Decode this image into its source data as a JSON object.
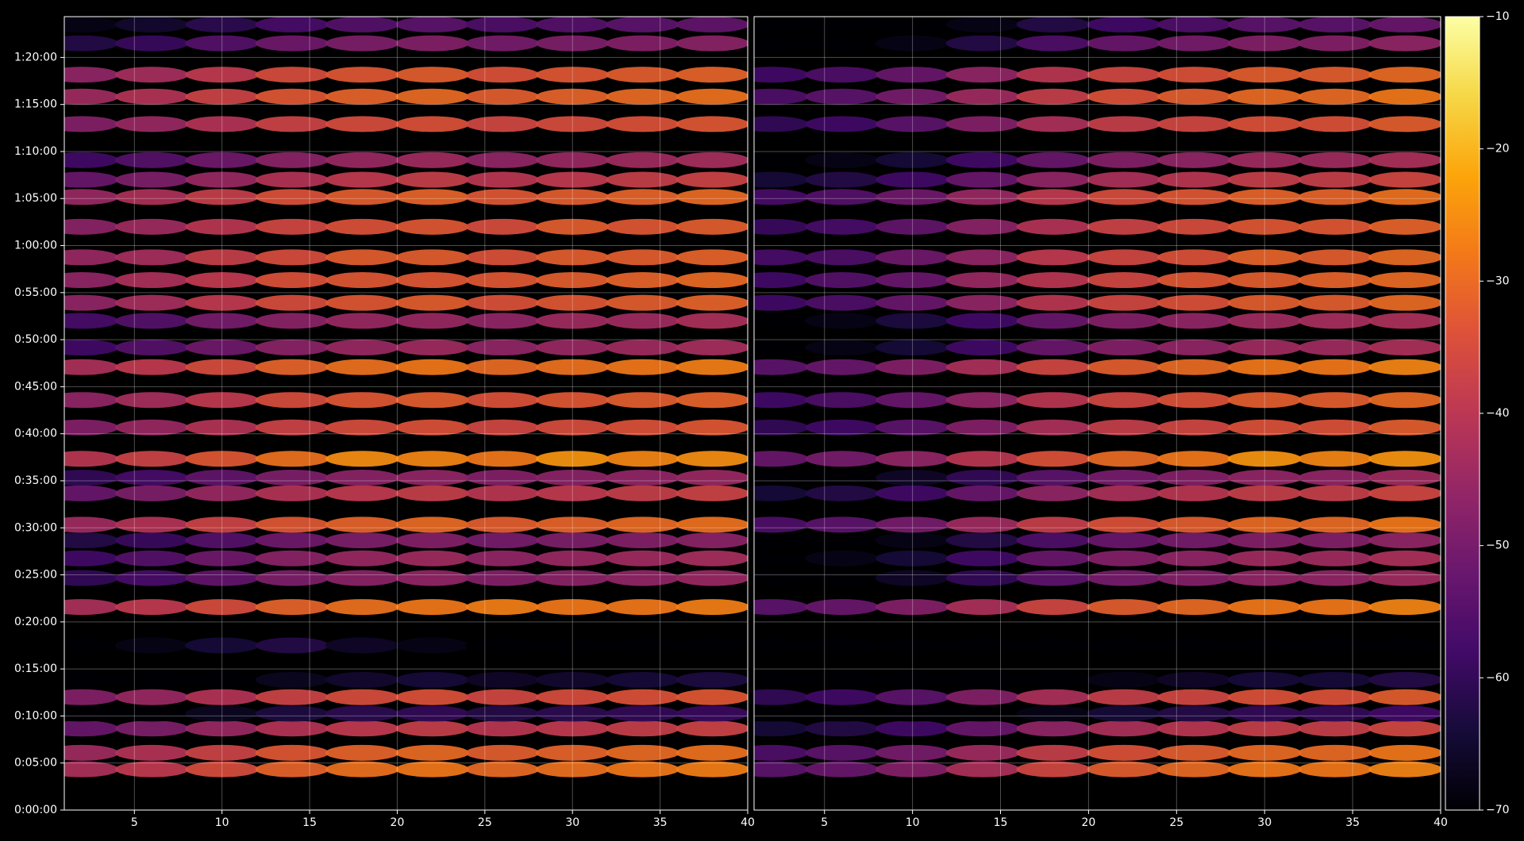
{
  "chart_data": {
    "type": "heatmap",
    "colormap": "inferno",
    "grid": true,
    "x": [
      2,
      6,
      10,
      14,
      18,
      22,
      26,
      30,
      34,
      38
    ],
    "y": [
      260,
      365,
      520,
      615,
      720,
      830,
      1050,
      1295,
      1480,
      1605,
      1720,
      1820,
      2020,
      2120,
      2240,
      2440,
      2615,
      2825,
      2950,
      3120,
      3235,
      3380,
      3525,
      3720,
      3910,
      4020,
      4145,
      4375,
      4550,
      4690,
      4890,
      5010
    ],
    "xlim": [
      1,
      40
    ],
    "xticks": [
      5,
      10,
      15,
      20,
      25,
      30,
      35,
      40
    ],
    "ylim": [
      0,
      5060
    ],
    "yticks": [
      {
        "value": 0,
        "label": "0:00:00"
      },
      {
        "value": 300,
        "label": "0:05:00"
      },
      {
        "value": 600,
        "label": "0:10:00"
      },
      {
        "value": 900,
        "label": "0:15:00"
      },
      {
        "value": 1200,
        "label": "0:20:00"
      },
      {
        "value": 1500,
        "label": "0:25:00"
      },
      {
        "value": 1800,
        "label": "0:30:00"
      },
      {
        "value": 2100,
        "label": "0:35:00"
      },
      {
        "value": 2400,
        "label": "0:40:00"
      },
      {
        "value": 2700,
        "label": "0:45:00"
      },
      {
        "value": 3000,
        "label": "0:50:00"
      },
      {
        "value": 3300,
        "label": "0:55:00"
      },
      {
        "value": 3600,
        "label": "1:00:00"
      },
      {
        "value": 3900,
        "label": "1:05:00"
      },
      {
        "value": 4200,
        "label": "1:10:00"
      },
      {
        "value": 4500,
        "label": "1:15:00"
      },
      {
        "value": 4800,
        "label": "1:20:00"
      }
    ],
    "clim": [
      -70,
      -10
    ],
    "cticks": [
      {
        "value": -70,
        "label": "−70"
      },
      {
        "value": -60,
        "label": "−60"
      },
      {
        "value": -50,
        "label": "−50"
      },
      {
        "value": -40,
        "label": "−40"
      },
      {
        "value": -30,
        "label": "−30"
      },
      {
        "value": -20,
        "label": "−20"
      },
      {
        "value": -10,
        "label": "−10"
      }
    ],
    "panels": [
      {
        "z": [
          [
            -42,
            -39,
            -35,
            -31,
            -29,
            -28,
            -30,
            -29,
            -28,
            -27
          ],
          [
            -44,
            -41,
            -37,
            -33,
            -31,
            -30,
            -32,
            -31,
            -30,
            -29
          ],
          [
            -52,
            -49,
            -45,
            -41,
            -39,
            -38,
            -40,
            -39,
            -38,
            -37
          ],
          [
            -70,
            -70,
            -67,
            -63,
            -61,
            -60,
            -62,
            -61,
            -60,
            -59
          ],
          [
            -48,
            -45,
            -41,
            -37,
            -35,
            -34,
            -36,
            -35,
            -34,
            -33
          ],
          [
            -70,
            -70,
            -70,
            -67,
            -65,
            -64,
            -66,
            -65,
            -64,
            -63
          ],
          [
            -70,
            -68,
            -64,
            -62,
            -66,
            -68,
            -70,
            -70,
            -70,
            -70
          ],
          [
            -42,
            -39,
            -35,
            -31,
            -29,
            -28,
            -27,
            -28,
            -28,
            -27
          ],
          [
            -60,
            -57,
            -53,
            -49,
            -47,
            -46,
            -48,
            -47,
            -46,
            -45
          ],
          [
            -58,
            -55,
            -51,
            -47,
            -45,
            -44,
            -46,
            -45,
            -44,
            -43
          ],
          [
            -62,
            -59,
            -55,
            -51,
            -49,
            -48,
            -50,
            -49,
            -48,
            -47
          ],
          [
            -44,
            -41,
            -37,
            -33,
            -31,
            -30,
            -32,
            -31,
            -30,
            -29
          ],
          [
            -52,
            -49,
            -45,
            -41,
            -39,
            -38,
            -40,
            -39,
            -38,
            -37
          ],
          [
            -60,
            -57,
            -53,
            -49,
            -47,
            -46,
            -48,
            -47,
            -46,
            -45
          ],
          [
            -40,
            -37,
            -33,
            -29,
            -25,
            -26,
            -28,
            -24,
            -26,
            -25
          ],
          [
            -48,
            -45,
            -41,
            -37,
            -35,
            -34,
            -36,
            -35,
            -34,
            -33
          ],
          [
            -46,
            -43,
            -39,
            -35,
            -33,
            -32,
            -34,
            -33,
            -32,
            -31
          ],
          [
            -42,
            -39,
            -35,
            -31,
            -29,
            -28,
            -30,
            -29,
            -28,
            -27
          ],
          [
            -58,
            -55,
            -51,
            -47,
            -45,
            -44,
            -46,
            -45,
            -44,
            -43
          ],
          [
            -57,
            -55,
            -50,
            -47,
            -45,
            -45,
            -46,
            -44,
            -44,
            -42
          ],
          [
            -46,
            -43,
            -39,
            -35,
            -33,
            -32,
            -34,
            -33,
            -32,
            -31
          ],
          [
            -46,
            -42,
            -39,
            -34,
            -33,
            -33,
            -33,
            -32,
            -31,
            -30
          ],
          [
            -45,
            -43,
            -38,
            -35,
            -32,
            -32,
            -34,
            -32,
            -32,
            -31
          ],
          [
            -47,
            -44,
            -40,
            -36,
            -34,
            -33,
            -35,
            -32,
            -33,
            -32
          ],
          [
            -45,
            -42,
            -38,
            -34,
            -32,
            -31,
            -33,
            -32,
            -31,
            -30
          ],
          [
            -52,
            -49,
            -45,
            -41,
            -39,
            -38,
            -40,
            -39,
            -38,
            -37
          ],
          [
            -58,
            -55,
            -51,
            -47,
            -45,
            -44,
            -46,
            -45,
            -44,
            -43
          ],
          [
            -48,
            -45,
            -41,
            -37,
            -35,
            -34,
            -36,
            -35,
            -34,
            -33
          ],
          [
            -44,
            -41,
            -37,
            -33,
            -31,
            -30,
            -32,
            -31,
            -30,
            -29
          ],
          [
            -46,
            -43,
            -39,
            -35,
            -33,
            -32,
            -34,
            -33,
            -32,
            -31
          ],
          [
            -62,
            -59,
            -55,
            -51,
            -49,
            -48,
            -50,
            -49,
            -48,
            -47
          ],
          [
            -68,
            -65,
            -61,
            -57,
            -55,
            -54,
            -56,
            -55,
            -54,
            -53
          ]
        ]
      },
      {
        "z": [
          [
            -54,
            -52,
            -48,
            -42,
            -36,
            -32,
            -30,
            -28,
            -28,
            -26
          ],
          [
            -56,
            -54,
            -50,
            -44,
            -38,
            -34,
            -32,
            -30,
            -30,
            -28
          ],
          [
            -64,
            -62,
            -58,
            -52,
            -46,
            -42,
            -40,
            -38,
            -38,
            -36
          ],
          [
            -70,
            -70,
            -70,
            -70,
            -68,
            -64,
            -62,
            -60,
            -60,
            -58
          ],
          [
            -60,
            -58,
            -54,
            -48,
            -42,
            -38,
            -36,
            -34,
            -34,
            -32
          ],
          [
            -70,
            -70,
            -70,
            -70,
            -70,
            -68,
            -66,
            -64,
            -64,
            -62
          ],
          [
            -70,
            -70,
            -70,
            -70,
            -70,
            -70,
            -70,
            -70,
            -70,
            -70
          ],
          [
            -54,
            -52,
            -48,
            -42,
            -36,
            -32,
            -30,
            -28,
            -28,
            -26
          ],
          [
            -70,
            -70,
            -66,
            -60,
            -54,
            -50,
            -48,
            -46,
            -46,
            -44
          ],
          [
            -70,
            -68,
            -64,
            -58,
            -52,
            -48,
            -46,
            -44,
            -44,
            -42
          ],
          [
            -70,
            -70,
            -68,
            -62,
            -56,
            -52,
            -50,
            -48,
            -48,
            -46
          ],
          [
            -56,
            -54,
            -50,
            -44,
            -38,
            -34,
            -32,
            -30,
            -30,
            -28
          ],
          [
            -64,
            -62,
            -58,
            -52,
            -46,
            -42,
            -40,
            -38,
            -38,
            -36
          ],
          [
            -70,
            -70,
            -66,
            -60,
            -54,
            -50,
            -48,
            -46,
            -46,
            -44
          ],
          [
            -52,
            -50,
            -46,
            -40,
            -34,
            -30,
            -28,
            -24,
            -26,
            -24
          ],
          [
            -60,
            -58,
            -54,
            -48,
            -42,
            -38,
            -36,
            -34,
            -34,
            -32
          ],
          [
            -58,
            -56,
            -52,
            -46,
            -40,
            -36,
            -34,
            -32,
            -32,
            -30
          ],
          [
            -54,
            -52,
            -48,
            -42,
            -36,
            -32,
            -30,
            -28,
            -28,
            -26
          ],
          [
            -70,
            -68,
            -64,
            -58,
            -52,
            -48,
            -46,
            -44,
            -44,
            -42
          ],
          [
            -70,
            -68,
            -63,
            -58,
            -52,
            -48,
            -46,
            -44,
            -43,
            -42
          ],
          [
            -58,
            -56,
            -52,
            -46,
            -40,
            -36,
            -34,
            -32,
            -32,
            -30
          ],
          [
            -58,
            -55,
            -52,
            -45,
            -40,
            -36,
            -33,
            -32,
            -31,
            -30
          ],
          [
            -57,
            -56,
            -51,
            -46,
            -39,
            -36,
            -34,
            -31,
            -32,
            -30
          ],
          [
            -59,
            -57,
            -53,
            -47,
            -41,
            -37,
            -35,
            -33,
            -33,
            -31
          ],
          [
            -57,
            -55,
            -51,
            -45,
            -39,
            -35,
            -33,
            -31,
            -31,
            -29
          ],
          [
            -64,
            -62,
            -58,
            -52,
            -46,
            -42,
            -40,
            -38,
            -38,
            -36
          ],
          [
            -70,
            -68,
            -64,
            -58,
            -52,
            -48,
            -46,
            -44,
            -44,
            -42
          ],
          [
            -60,
            -58,
            -54,
            -48,
            -42,
            -38,
            -36,
            -34,
            -34,
            -32
          ],
          [
            -56,
            -54,
            -50,
            -44,
            -38,
            -34,
            -32,
            -30,
            -30,
            -28
          ],
          [
            -58,
            -56,
            -52,
            -46,
            -40,
            -36,
            -34,
            -32,
            -32,
            -30
          ],
          [
            -70,
            -70,
            -68,
            -62,
            -56,
            -52,
            -50,
            -48,
            -48,
            -46
          ],
          [
            -70,
            -70,
            -70,
            -68,
            -62,
            -58,
            -56,
            -54,
            -54,
            -52
          ]
        ]
      }
    ]
  }
}
